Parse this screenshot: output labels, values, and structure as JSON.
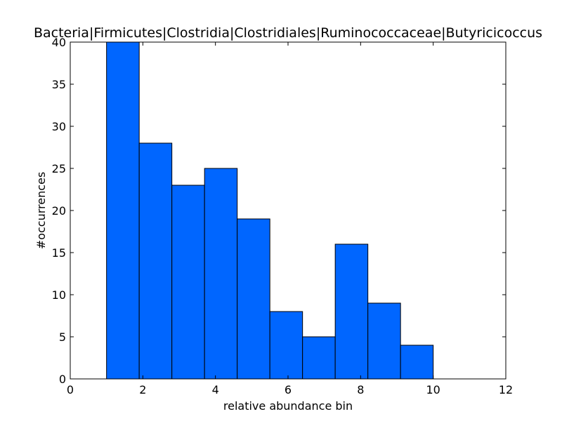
{
  "chart_data": {
    "type": "bar",
    "title": "Bacteria|Firmicutes|Clostridia|Clostridiales|Ruminococcaceae|Butyricicoccus",
    "xlabel": "relative abundance bin",
    "ylabel": "#occurrences",
    "xlim": [
      0,
      12
    ],
    "ylim": [
      0,
      40
    ],
    "xticks": [
      0,
      2,
      4,
      6,
      8,
      10,
      12
    ],
    "yticks": [
      0,
      5,
      10,
      15,
      20,
      25,
      30,
      35,
      40
    ],
    "bins": [
      {
        "start": 1.0,
        "end": 1.9,
        "value": 40
      },
      {
        "start": 1.9,
        "end": 2.8,
        "value": 28
      },
      {
        "start": 2.8,
        "end": 3.7,
        "value": 23
      },
      {
        "start": 3.7,
        "end": 4.6,
        "value": 25
      },
      {
        "start": 4.6,
        "end": 5.5,
        "value": 19
      },
      {
        "start": 5.5,
        "end": 6.4,
        "value": 8
      },
      {
        "start": 6.4,
        "end": 7.3,
        "value": 5
      },
      {
        "start": 7.3,
        "end": 8.2,
        "value": 16
      },
      {
        "start": 8.2,
        "end": 9.1,
        "value": 9
      },
      {
        "start": 9.1,
        "end": 10.0,
        "value": 4
      }
    ],
    "bar_color": "#0066ff",
    "edge_color": "#000000",
    "grid": false,
    "legend": "none"
  }
}
